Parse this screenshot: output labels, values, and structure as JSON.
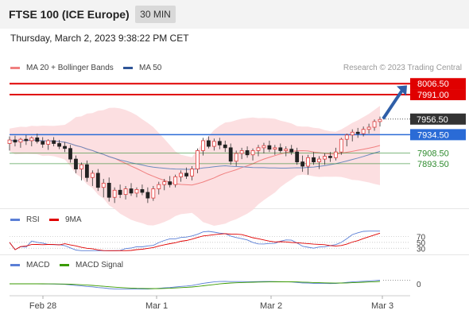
{
  "header": {
    "title": "FTSE 100 (ICE Europe)",
    "timeframe": "30 MIN",
    "datetime": "Thursday, March 2, 2023 9:38:22 PM CET"
  },
  "legend_price": [
    {
      "label": "MA 20 + Bollinger Bands",
      "color": "#f08080"
    },
    {
      "label": "MA 50",
      "color": "#2f5597"
    }
  ],
  "credit": "Research © 2023 Trading Central",
  "legend_rsi": [
    {
      "label": "RSI",
      "color": "#5b7fd6"
    },
    {
      "label": "9MA",
      "color": "#e00000"
    }
  ],
  "legend_macd": [
    {
      "label": "MACD",
      "color": "#5b7fd6"
    },
    {
      "label": "MACD Signal",
      "color": "#3a9a00"
    }
  ],
  "chart_data": {
    "type": "candlestick",
    "x_ticks": [
      "Feb 28",
      "Mar 1",
      "Mar 2",
      "Mar 3"
    ],
    "price_axis": {
      "ylim": [
        7835,
        8018
      ]
    },
    "levels": [
      {
        "label": "8006.50",
        "value": 8006.5,
        "kind": "resistance",
        "color": "#e00000"
      },
      {
        "label": "7991.00",
        "value": 7991.0,
        "kind": "resistance",
        "color": "#e00000"
      },
      {
        "label": "7956.50",
        "value": 7956.5,
        "kind": "last",
        "color": "#333333"
      },
      {
        "label": "7934.50",
        "value": 7934.5,
        "kind": "pivot",
        "color": "#2a6bd6"
      },
      {
        "label": "7908.50",
        "value": 7908.5,
        "kind": "support",
        "color": "#2e8b2e"
      },
      {
        "label": "7893.50",
        "value": 7893.5,
        "kind": "support",
        "color": "#2e8b2e"
      }
    ],
    "arrow": {
      "from": 7957,
      "to": 8004
    },
    "candles": [
      {
        "o": 7922,
        "h": 7932,
        "l": 7912,
        "c": 7927
      },
      {
        "o": 7927,
        "h": 7933,
        "l": 7918,
        "c": 7924
      },
      {
        "o": 7924,
        "h": 7930,
        "l": 7916,
        "c": 7928
      },
      {
        "o": 7928,
        "h": 7934,
        "l": 7920,
        "c": 7926
      },
      {
        "o": 7926,
        "h": 7932,
        "l": 7918,
        "c": 7930
      },
      {
        "o": 7930,
        "h": 7936,
        "l": 7922,
        "c": 7925
      },
      {
        "o": 7925,
        "h": 7931,
        "l": 7916,
        "c": 7921
      },
      {
        "o": 7921,
        "h": 7928,
        "l": 7913,
        "c": 7926
      },
      {
        "o": 7926,
        "h": 7931,
        "l": 7918,
        "c": 7922
      },
      {
        "o": 7922,
        "h": 7927,
        "l": 7914,
        "c": 7918
      },
      {
        "o": 7918,
        "h": 7924,
        "l": 7910,
        "c": 7915
      },
      {
        "o": 7915,
        "h": 7920,
        "l": 7895,
        "c": 7900
      },
      {
        "o": 7900,
        "h": 7905,
        "l": 7880,
        "c": 7886
      },
      {
        "o": 7886,
        "h": 7895,
        "l": 7870,
        "c": 7892
      },
      {
        "o": 7892,
        "h": 7898,
        "l": 7868,
        "c": 7874
      },
      {
        "o": 7874,
        "h": 7884,
        "l": 7862,
        "c": 7880
      },
      {
        "o": 7880,
        "h": 7886,
        "l": 7855,
        "c": 7860
      },
      {
        "o": 7860,
        "h": 7872,
        "l": 7846,
        "c": 7866
      },
      {
        "o": 7866,
        "h": 7874,
        "l": 7840,
        "c": 7846
      },
      {
        "o": 7846,
        "h": 7860,
        "l": 7838,
        "c": 7856
      },
      {
        "o": 7856,
        "h": 7864,
        "l": 7845,
        "c": 7850
      },
      {
        "o": 7850,
        "h": 7862,
        "l": 7843,
        "c": 7858
      },
      {
        "o": 7858,
        "h": 7866,
        "l": 7848,
        "c": 7852
      },
      {
        "o": 7852,
        "h": 7860,
        "l": 7846,
        "c": 7857
      },
      {
        "o": 7857,
        "h": 7864,
        "l": 7849,
        "c": 7853
      },
      {
        "o": 7853,
        "h": 7860,
        "l": 7838,
        "c": 7845
      },
      {
        "o": 7845,
        "h": 7862,
        "l": 7841,
        "c": 7858
      },
      {
        "o": 7858,
        "h": 7868,
        "l": 7850,
        "c": 7864
      },
      {
        "o": 7864,
        "h": 7872,
        "l": 7856,
        "c": 7868
      },
      {
        "o": 7868,
        "h": 7876,
        "l": 7860,
        "c": 7864
      },
      {
        "o": 7864,
        "h": 7878,
        "l": 7860,
        "c": 7875
      },
      {
        "o": 7875,
        "h": 7884,
        "l": 7868,
        "c": 7880
      },
      {
        "o": 7880,
        "h": 7888,
        "l": 7872,
        "c": 7876
      },
      {
        "o": 7876,
        "h": 7890,
        "l": 7870,
        "c": 7886
      },
      {
        "o": 7886,
        "h": 7915,
        "l": 7880,
        "c": 7912
      },
      {
        "o": 7912,
        "h": 7930,
        "l": 7905,
        "c": 7926
      },
      {
        "o": 7926,
        "h": 7932,
        "l": 7915,
        "c": 7918
      },
      {
        "o": 7918,
        "h": 7929,
        "l": 7912,
        "c": 7925
      },
      {
        "o": 7925,
        "h": 7930,
        "l": 7914,
        "c": 7920
      },
      {
        "o": 7920,
        "h": 7926,
        "l": 7910,
        "c": 7916
      },
      {
        "o": 7916,
        "h": 7922,
        "l": 7892,
        "c": 7897
      },
      {
        "o": 7897,
        "h": 7912,
        "l": 7890,
        "c": 7908
      },
      {
        "o": 7908,
        "h": 7916,
        "l": 7900,
        "c": 7912
      },
      {
        "o": 7912,
        "h": 7918,
        "l": 7902,
        "c": 7906
      },
      {
        "o": 7906,
        "h": 7915,
        "l": 7898,
        "c": 7912
      },
      {
        "o": 7912,
        "h": 7920,
        "l": 7904,
        "c": 7916
      },
      {
        "o": 7916,
        "h": 7923,
        "l": 7908,
        "c": 7919
      },
      {
        "o": 7919,
        "h": 7926,
        "l": 7910,
        "c": 7914
      },
      {
        "o": 7914,
        "h": 7920,
        "l": 7906,
        "c": 7916
      },
      {
        "o": 7916,
        "h": 7922,
        "l": 7909,
        "c": 7912
      },
      {
        "o": 7912,
        "h": 7918,
        "l": 7904,
        "c": 7914
      },
      {
        "o": 7914,
        "h": 7920,
        "l": 7906,
        "c": 7910
      },
      {
        "o": 7910,
        "h": 7916,
        "l": 7892,
        "c": 7896
      },
      {
        "o": 7896,
        "h": 7905,
        "l": 7882,
        "c": 7890
      },
      {
        "o": 7890,
        "h": 7906,
        "l": 7878,
        "c": 7902
      },
      {
        "o": 7902,
        "h": 7910,
        "l": 7892,
        "c": 7896
      },
      {
        "o": 7896,
        "h": 7904,
        "l": 7886,
        "c": 7900
      },
      {
        "o": 7900,
        "h": 7908,
        "l": 7892,
        "c": 7904
      },
      {
        "o": 7904,
        "h": 7910,
        "l": 7896,
        "c": 7902
      },
      {
        "o": 7902,
        "h": 7916,
        "l": 7898,
        "c": 7910
      },
      {
        "o": 7910,
        "h": 7930,
        "l": 7906,
        "c": 7928
      },
      {
        "o": 7928,
        "h": 7936,
        "l": 7918,
        "c": 7934
      },
      {
        "o": 7934,
        "h": 7942,
        "l": 7925,
        "c": 7938
      },
      {
        "o": 7938,
        "h": 7944,
        "l": 7930,
        "c": 7936
      },
      {
        "o": 7936,
        "h": 7946,
        "l": 7932,
        "c": 7942
      },
      {
        "o": 7942,
        "h": 7950,
        "l": 7936,
        "c": 7945
      },
      {
        "o": 7945,
        "h": 7956,
        "l": 7940,
        "c": 7953
      },
      {
        "o": 7953,
        "h": 7960,
        "l": 7946,
        "c": 7956
      }
    ],
    "rsi_axis": {
      "ticks": [
        "70",
        "50",
        "30"
      ]
    },
    "macd_axis": {
      "ticks": [
        "0"
      ]
    }
  }
}
